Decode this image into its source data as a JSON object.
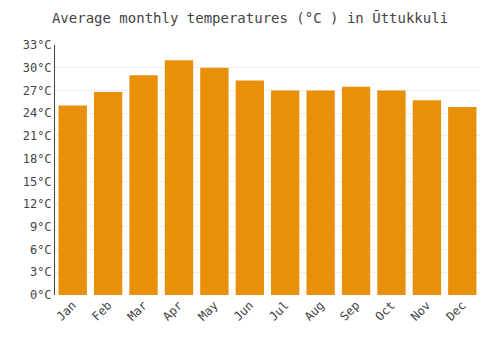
{
  "chart_data": {
    "type": "bar",
    "title": "Average monthly temperatures (°C ) in Ūttukkuli",
    "categories": [
      "Jan",
      "Feb",
      "Mar",
      "Apr",
      "May",
      "Jun",
      "Jul",
      "Aug",
      "Sep",
      "Oct",
      "Nov",
      "Dec"
    ],
    "values": [
      25.0,
      26.8,
      29.0,
      31.0,
      30.0,
      28.3,
      27.0,
      27.0,
      27.5,
      27.0,
      25.7,
      24.8
    ],
    "color": "#E8900A",
    "ylim": [
      0,
      33
    ],
    "yticks": [
      {
        "value": 0,
        "label": "0°C"
      },
      {
        "value": 3,
        "label": "3°C"
      },
      {
        "value": 6,
        "label": "6°C"
      },
      {
        "value": 9,
        "label": "9°C"
      },
      {
        "value": 12,
        "label": "12°C"
      },
      {
        "value": 15,
        "label": "15°C"
      },
      {
        "value": 18,
        "label": "18°C"
      },
      {
        "value": 21,
        "label": "21°C"
      },
      {
        "value": 24,
        "label": "24°C"
      },
      {
        "value": 27,
        "label": "27°C"
      },
      {
        "value": 30,
        "label": "30°C"
      },
      {
        "value": 33,
        "label": "33°C"
      }
    ],
    "grid": true
  }
}
